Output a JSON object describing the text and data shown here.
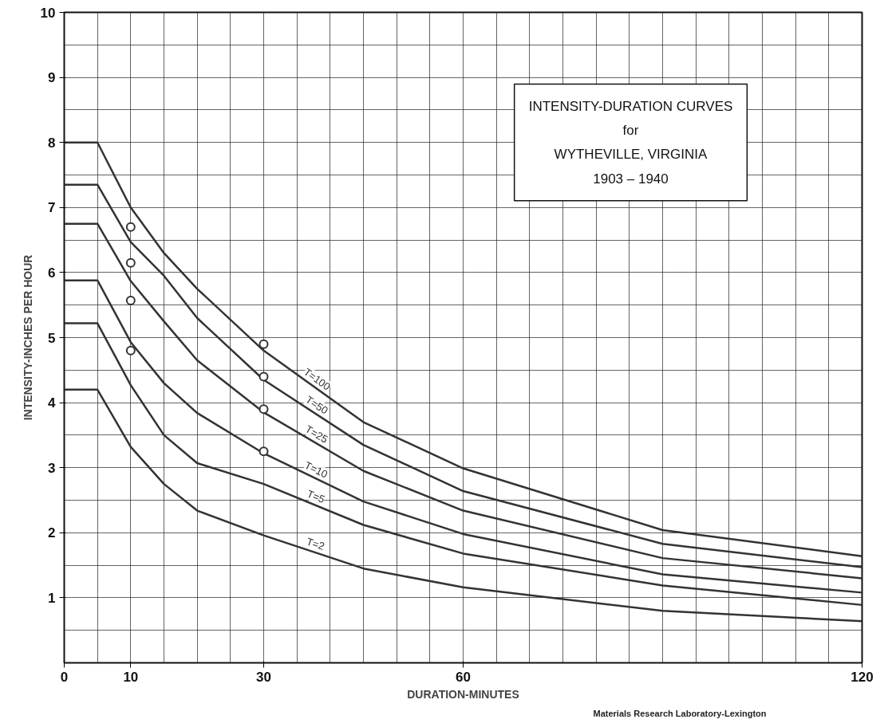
{
  "chart_data": {
    "type": "line",
    "title": "INTENSITY-DURATION CURVES\nfor\nWYTHEVILLE, VIRGINIA\n1903 – 1940",
    "xlabel": "DURATION-MINUTES",
    "ylabel": "INTENSITY-INCHES PER HOUR",
    "x": [
      0,
      5,
      10,
      15,
      20,
      30,
      45,
      60,
      90,
      120
    ],
    "series": [
      {
        "name": "T=100",
        "color": "#333333",
        "values": [
          8.0,
          8.0,
          7.0,
          6.3,
          5.75,
          4.8,
          3.7,
          2.99,
          2.04,
          1.64
        ]
      },
      {
        "name": "T=50",
        "color": "#333333",
        "values": [
          7.35,
          7.35,
          6.47,
          5.95,
          5.3,
          4.35,
          3.35,
          2.64,
          1.83,
          1.47
        ]
      },
      {
        "name": "T=25",
        "color": "#333333",
        "values": [
          6.75,
          6.75,
          5.87,
          5.25,
          4.65,
          3.85,
          2.95,
          2.34,
          1.61,
          1.3
        ]
      },
      {
        "name": "T=10",
        "color": "#333333",
        "values": [
          5.88,
          5.88,
          4.93,
          4.3,
          3.84,
          3.22,
          2.48,
          1.98,
          1.36,
          1.08
        ]
      },
      {
        "name": "T=5",
        "color": "#333333",
        "values": [
          5.22,
          5.22,
          4.27,
          3.5,
          3.07,
          2.75,
          2.12,
          1.68,
          1.19,
          0.89
        ]
      },
      {
        "name": "T=2",
        "color": "#333333",
        "values": [
          4.2,
          4.2,
          3.32,
          2.75,
          2.34,
          1.96,
          1.45,
          1.16,
          0.8,
          0.64
        ]
      },
      {
        "type": "scatter",
        "marker": "circle",
        "color": "#333333",
        "values": [
          null,
          null,
          6.7,
          null,
          null,
          4.9,
          null,
          null,
          null,
          null
        ]
      },
      {
        "type": "scatter",
        "marker": "circle",
        "color": "#333333",
        "values": [
          null,
          null,
          6.15,
          null,
          null,
          4.4,
          null,
          null,
          null,
          null
        ]
      },
      {
        "type": "scatter",
        "marker": "circle",
        "color": "#333333",
        "values": [
          null,
          null,
          5.57,
          null,
          null,
          3.9,
          null,
          null,
          null,
          null
        ]
      },
      {
        "type": "scatter",
        "marker": "circle",
        "color": "#333333",
        "values": [
          null,
          null,
          4.8,
          null,
          null,
          3.25,
          null,
          null,
          null,
          null
        ]
      }
    ],
    "xlim": [
      0,
      120
    ],
    "ylim": [
      0,
      10
    ],
    "xticks": [
      0,
      10,
      30,
      60,
      120
    ],
    "yticks": [
      1,
      2,
      3,
      4,
      5,
      6,
      7,
      8,
      9,
      10
    ],
    "grid": true,
    "marker": "none",
    "line_style": "solid",
    "annotations": [
      "Materials Research Laboratory-Lexington"
    ]
  }
}
